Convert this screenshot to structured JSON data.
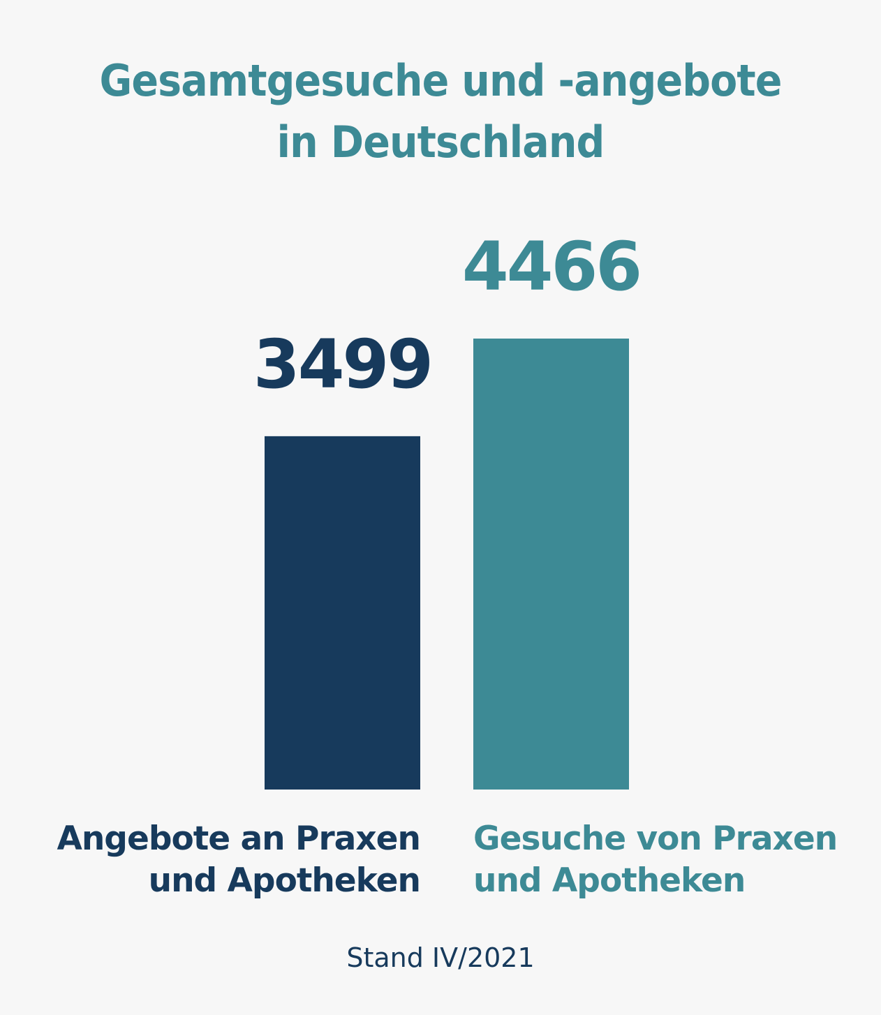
{
  "chart_data": {
    "type": "bar",
    "title": [
      "Gesamtgesuche und -angebote",
      "in Deutschland"
    ],
    "categories": [
      [
        "Angebote an Praxen",
        "und Apotheken"
      ],
      [
        "Gesuche von Praxen",
        "und Apotheken"
      ]
    ],
    "values": [
      3499,
      4466
    ],
    "colors": [
      "#173a5c",
      "#3d8a95"
    ],
    "note": "Stand IV/2021",
    "grid": false,
    "axes": false
  }
}
